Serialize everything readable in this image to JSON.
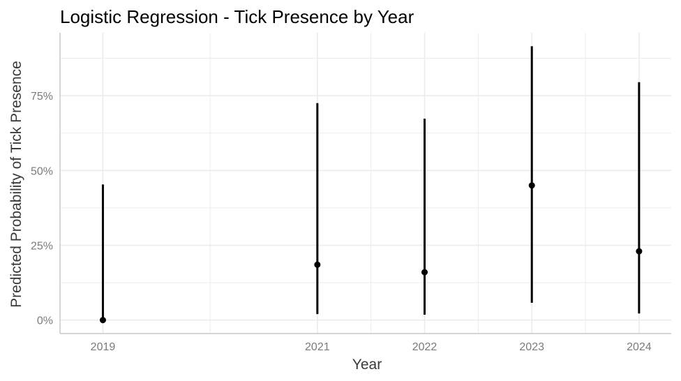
{
  "chart_data": {
    "type": "scatter",
    "title": "Logistic Regression - Tick Presence by Year",
    "xlabel": "Year",
    "ylabel": "Predicted Probability of Tick Presence",
    "x_ticks": [
      "2019",
      "2021",
      "2022",
      "2023",
      "2024"
    ],
    "y_ticks": [
      "0%",
      "25%",
      "50%",
      "75%"
    ],
    "xlim": [
      2018.6,
      2024.3
    ],
    "ylim": [
      -0.045,
      0.96
    ],
    "grid": true,
    "legend": "none",
    "colors": {
      "marks": "#000000",
      "grid": "#ebebeb",
      "axis_line": "#c8c8c8"
    },
    "series": [
      {
        "x": [
          2019,
          2021,
          2022,
          2023,
          2024
        ],
        "y": [
          0.0,
          0.185,
          0.16,
          0.45,
          0.23
        ],
        "lower": [
          0.0,
          0.02,
          0.018,
          0.058,
          0.022
        ],
        "upper": [
          0.453,
          0.725,
          0.673,
          0.915,
          0.795
        ]
      }
    ]
  }
}
